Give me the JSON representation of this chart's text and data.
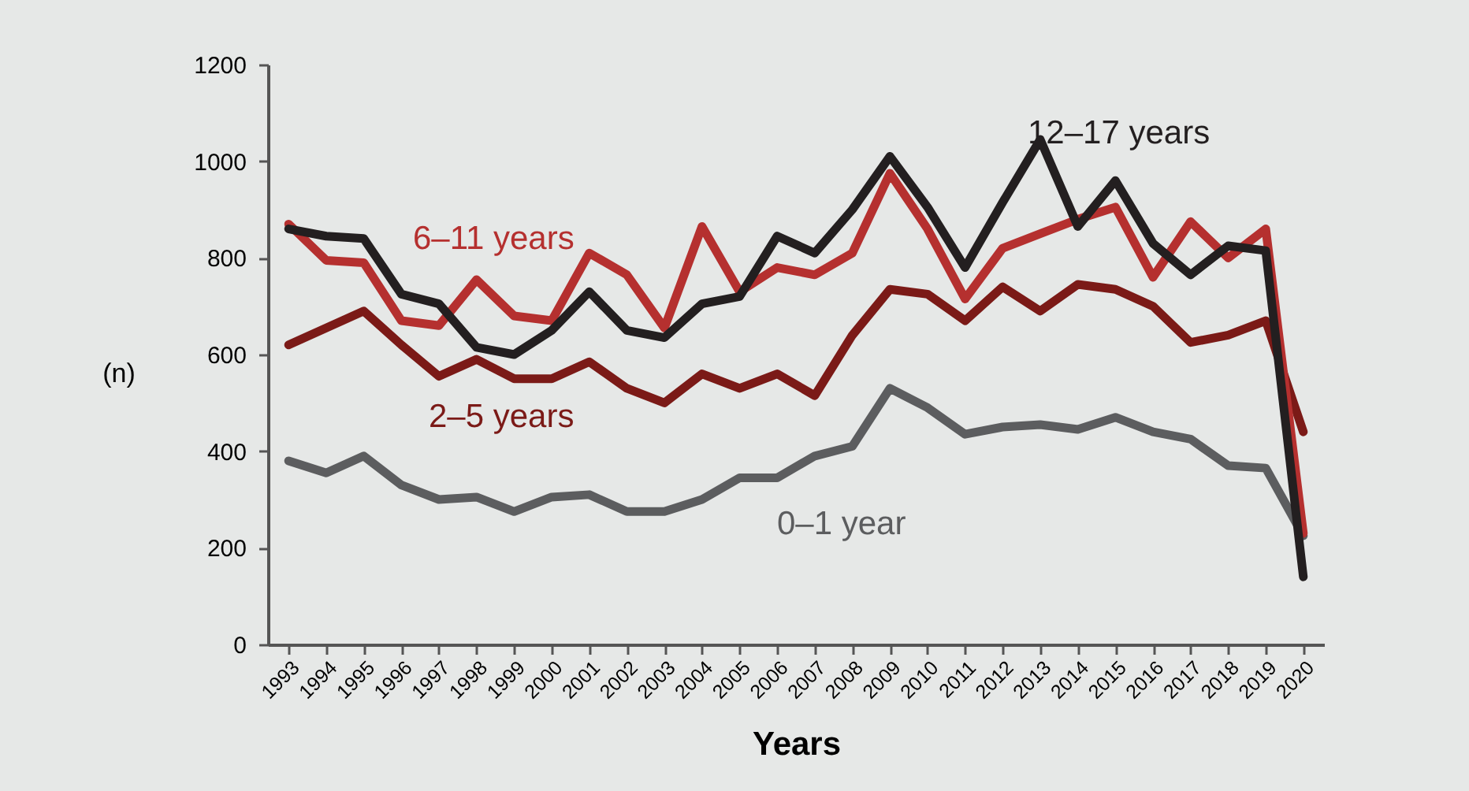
{
  "chart_data": {
    "type": "line",
    "xlabel": "Years",
    "ylabel": "(n)",
    "categories": [
      "1993",
      "1994",
      "1995",
      "1996",
      "1997",
      "1998",
      "1999",
      "2000",
      "2001",
      "2002",
      "2003",
      "2004",
      "2005",
      "2006",
      "2007",
      "2008",
      "2009",
      "2010",
      "2011",
      "2012",
      "2013",
      "2014",
      "2015",
      "2016",
      "2017",
      "2018",
      "2019",
      "2020"
    ],
    "series": [
      {
        "name": "0–1 year",
        "color": "#5c5d5f",
        "values": [
          380,
          355,
          390,
          330,
          300,
          305,
          275,
          305,
          310,
          275,
          275,
          300,
          345,
          345,
          390,
          410,
          530,
          490,
          435,
          450,
          455,
          445,
          470,
          440,
          425,
          370,
          365,
          225
        ]
      },
      {
        "name": "2–5 years",
        "color": "#7b1a17",
        "values": [
          620,
          655,
          690,
          620,
          555,
          590,
          550,
          550,
          585,
          530,
          500,
          560,
          530,
          560,
          515,
          640,
          735,
          725,
          670,
          740,
          690,
          745,
          735,
          700,
          625,
          640,
          670,
          440
        ]
      },
      {
        "name": "6–11 years",
        "color": "#b5302f",
        "values": [
          870,
          795,
          790,
          670,
          660,
          755,
          680,
          670,
          810,
          765,
          655,
          865,
          730,
          780,
          765,
          810,
          975,
          860,
          715,
          820,
          850,
          880,
          905,
          760,
          875,
          800,
          860,
          230
        ]
      },
      {
        "name": "12–17 years",
        "color": "#231f20",
        "values": [
          860,
          845,
          840,
          725,
          705,
          615,
          600,
          650,
          730,
          650,
          635,
          705,
          720,
          845,
          810,
          900,
          1010,
          905,
          780,
          915,
          1045,
          865,
          960,
          830,
          765,
          825,
          815,
          140
        ]
      }
    ],
    "ylim": [
      0,
      1200
    ],
    "yticks": [
      0,
      200,
      400,
      600,
      800,
      1000,
      1200
    ],
    "line_style": "solid",
    "marker": "none"
  }
}
